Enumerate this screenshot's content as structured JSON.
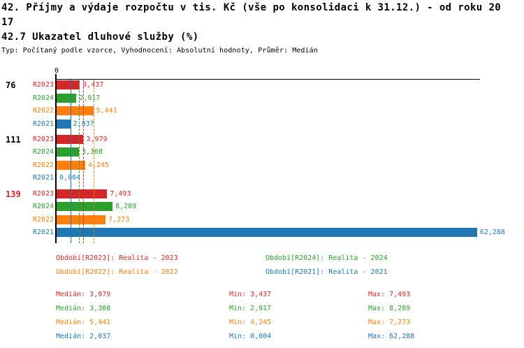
{
  "title": {
    "line1": "42. Příjmy a výdaje rozpočtu v tis. Kč (vše po konsolidaci k 31.12.) - od roku 20",
    "line2": "17",
    "subtitle": "42.7 Ukazatel dluhové služby (%)",
    "meta": "Typ: Počítaný podle vzorce, Vyhodnocení: Absolutní hodnoty, Průměr: Medián"
  },
  "colors": {
    "red": "#d62728",
    "green": "#2ca02c",
    "orange": "#ff7f0e",
    "blue": "#1f77b4",
    "axis": "#000000"
  },
  "chart_data": {
    "type": "bar",
    "orientation": "horizontal",
    "title": "42.7 Ukazatel dluhové služby (%)",
    "xlabel": "",
    "ylabel": "",
    "xlim": [
      0,
      63.5
    ],
    "axis_zero_label": "0",
    "grid": false,
    "series_order": [
      "R2023",
      "R2024",
      "R2022",
      "R2021"
    ],
    "series_colors": {
      "R2023": "#d62728",
      "R2024": "#2ca02c",
      "R2022": "#ff7f0e",
      "R2021": "#1f77b4"
    },
    "groups": [
      {
        "label": "76",
        "label_color": "#000000",
        "bars": [
          {
            "series": "R2023",
            "value": 3.437,
            "display": "3,437"
          },
          {
            "series": "R2024",
            "value": 2.917,
            "display": "2,917"
          },
          {
            "series": "R2022",
            "value": 5.441,
            "display": "5,441"
          },
          {
            "series": "R2021",
            "value": 2.037,
            "display": "2,037"
          }
        ]
      },
      {
        "label": "111",
        "label_color": "#000000",
        "bars": [
          {
            "series": "R2023",
            "value": 3.979,
            "display": "3,979"
          },
          {
            "series": "R2024",
            "value": 3.308,
            "display": "3,308"
          },
          {
            "series": "R2022",
            "value": 4.245,
            "display": "4,245"
          },
          {
            "series": "R2021",
            "value": 0.004,
            "display": "0,004"
          }
        ]
      },
      {
        "label": "139",
        "label_color": "#d62728",
        "bars": [
          {
            "series": "R2023",
            "value": 7.493,
            "display": "7,493"
          },
          {
            "series": "R2024",
            "value": 8.289,
            "display": "8,289"
          },
          {
            "series": "R2022",
            "value": 7.273,
            "display": "7,273"
          },
          {
            "series": "R2021",
            "value": 62.288,
            "display": "62,288"
          }
        ]
      }
    ],
    "median_lines": [
      {
        "series": "R2023",
        "value": 3.979,
        "style": "dashed"
      },
      {
        "series": "R2024",
        "value": 3.308,
        "style": "dashed"
      },
      {
        "series": "R2022",
        "value": 5.441,
        "style": "dashed"
      },
      {
        "series": "R2021",
        "value": 2.037,
        "style": "solid"
      }
    ]
  },
  "legend": {
    "items": [
      {
        "text": "Období[R2023]: Realita - 2023",
        "color": "#d62728"
      },
      {
        "text": "Období[R2024]: Realita - 2024",
        "color": "#2ca02c"
      },
      {
        "text": "Období[R2022]: Realita - 2022",
        "color": "#ff7f0e"
      },
      {
        "text": "Období[R2021]: Realita - 2021",
        "color": "#1f77b4"
      }
    ]
  },
  "stats": {
    "rows": [
      {
        "color": "#d62728",
        "median": "Medián: 3,979",
        "min": "Min: 3,437",
        "max": "Max: 7,493"
      },
      {
        "color": "#2ca02c",
        "median": "Medián: 3,308",
        "min": "Min: 2,917",
        "max": "Max: 8,289"
      },
      {
        "color": "#ff7f0e",
        "median": "Medián: 5,441",
        "min": "Min: 4,245",
        "max": "Max: 7,273"
      },
      {
        "color": "#1f77b4",
        "median": "Medián: 2,037",
        "min": "Min: 0,004",
        "max": "Max: 62,288"
      }
    ]
  }
}
